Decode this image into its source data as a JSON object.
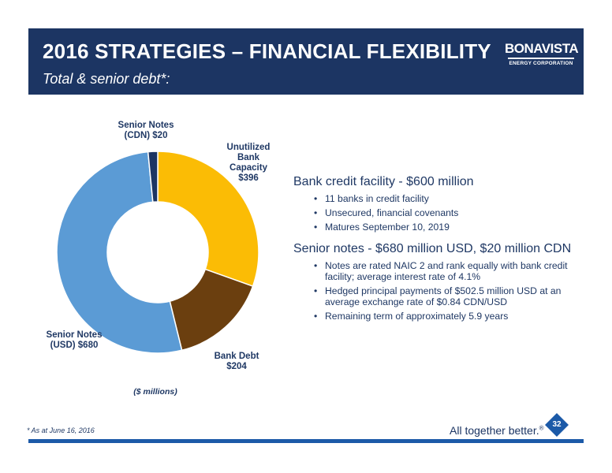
{
  "header": {
    "title": "2016 STRATEGIES – FINANCIAL FLEXIBILITY",
    "subtitle": "Total & senior debt*:",
    "logo_main": "BONAVISTA",
    "logo_sub": "ENERGY CORPORATION"
  },
  "chart_data": {
    "type": "pie",
    "categories": [
      "Unutilized Bank Capacity",
      "Bank Debt",
      "Senior Notes (USD)",
      "Senior Notes (CDN)"
    ],
    "values": [
      396,
      204,
      680,
      20
    ],
    "colors": [
      "#fbbc05",
      "#6b3f0f",
      "#5b9bd5",
      "#1c3563"
    ],
    "labels": [
      [
        "Unutilized",
        "Bank",
        "Capacity",
        "$396"
      ],
      [
        "Bank Debt",
        "$204"
      ],
      [
        "Senior Notes",
        "(USD) $680"
      ],
      [
        "Senior Notes",
        "(CDN) $20"
      ]
    ],
    "units_note": "($ millions)"
  },
  "bank_facility": {
    "heading": "Bank credit facility - $600 million",
    "bullets": [
      "11 banks in credit facility",
      "Unsecured, financial  covenants",
      "Matures September 10, 2019"
    ]
  },
  "senior_notes": {
    "heading": "Senior notes - $680 million USD, $20 million CDN",
    "bullets": [
      "Notes are rated NAIC 2 and rank equally with bank credit facility; average interest rate of 4.1%",
      "Hedged principal payments of $502.5 million USD at an average exchange rate of $0.84 CDN/USD",
      "Remaining term of approximately 5.9 years"
    ]
  },
  "footer": {
    "footnote": "* As at June 16, 2016",
    "tagline": "All together better.",
    "tagline_mark": "®",
    "page_number": "32"
  }
}
